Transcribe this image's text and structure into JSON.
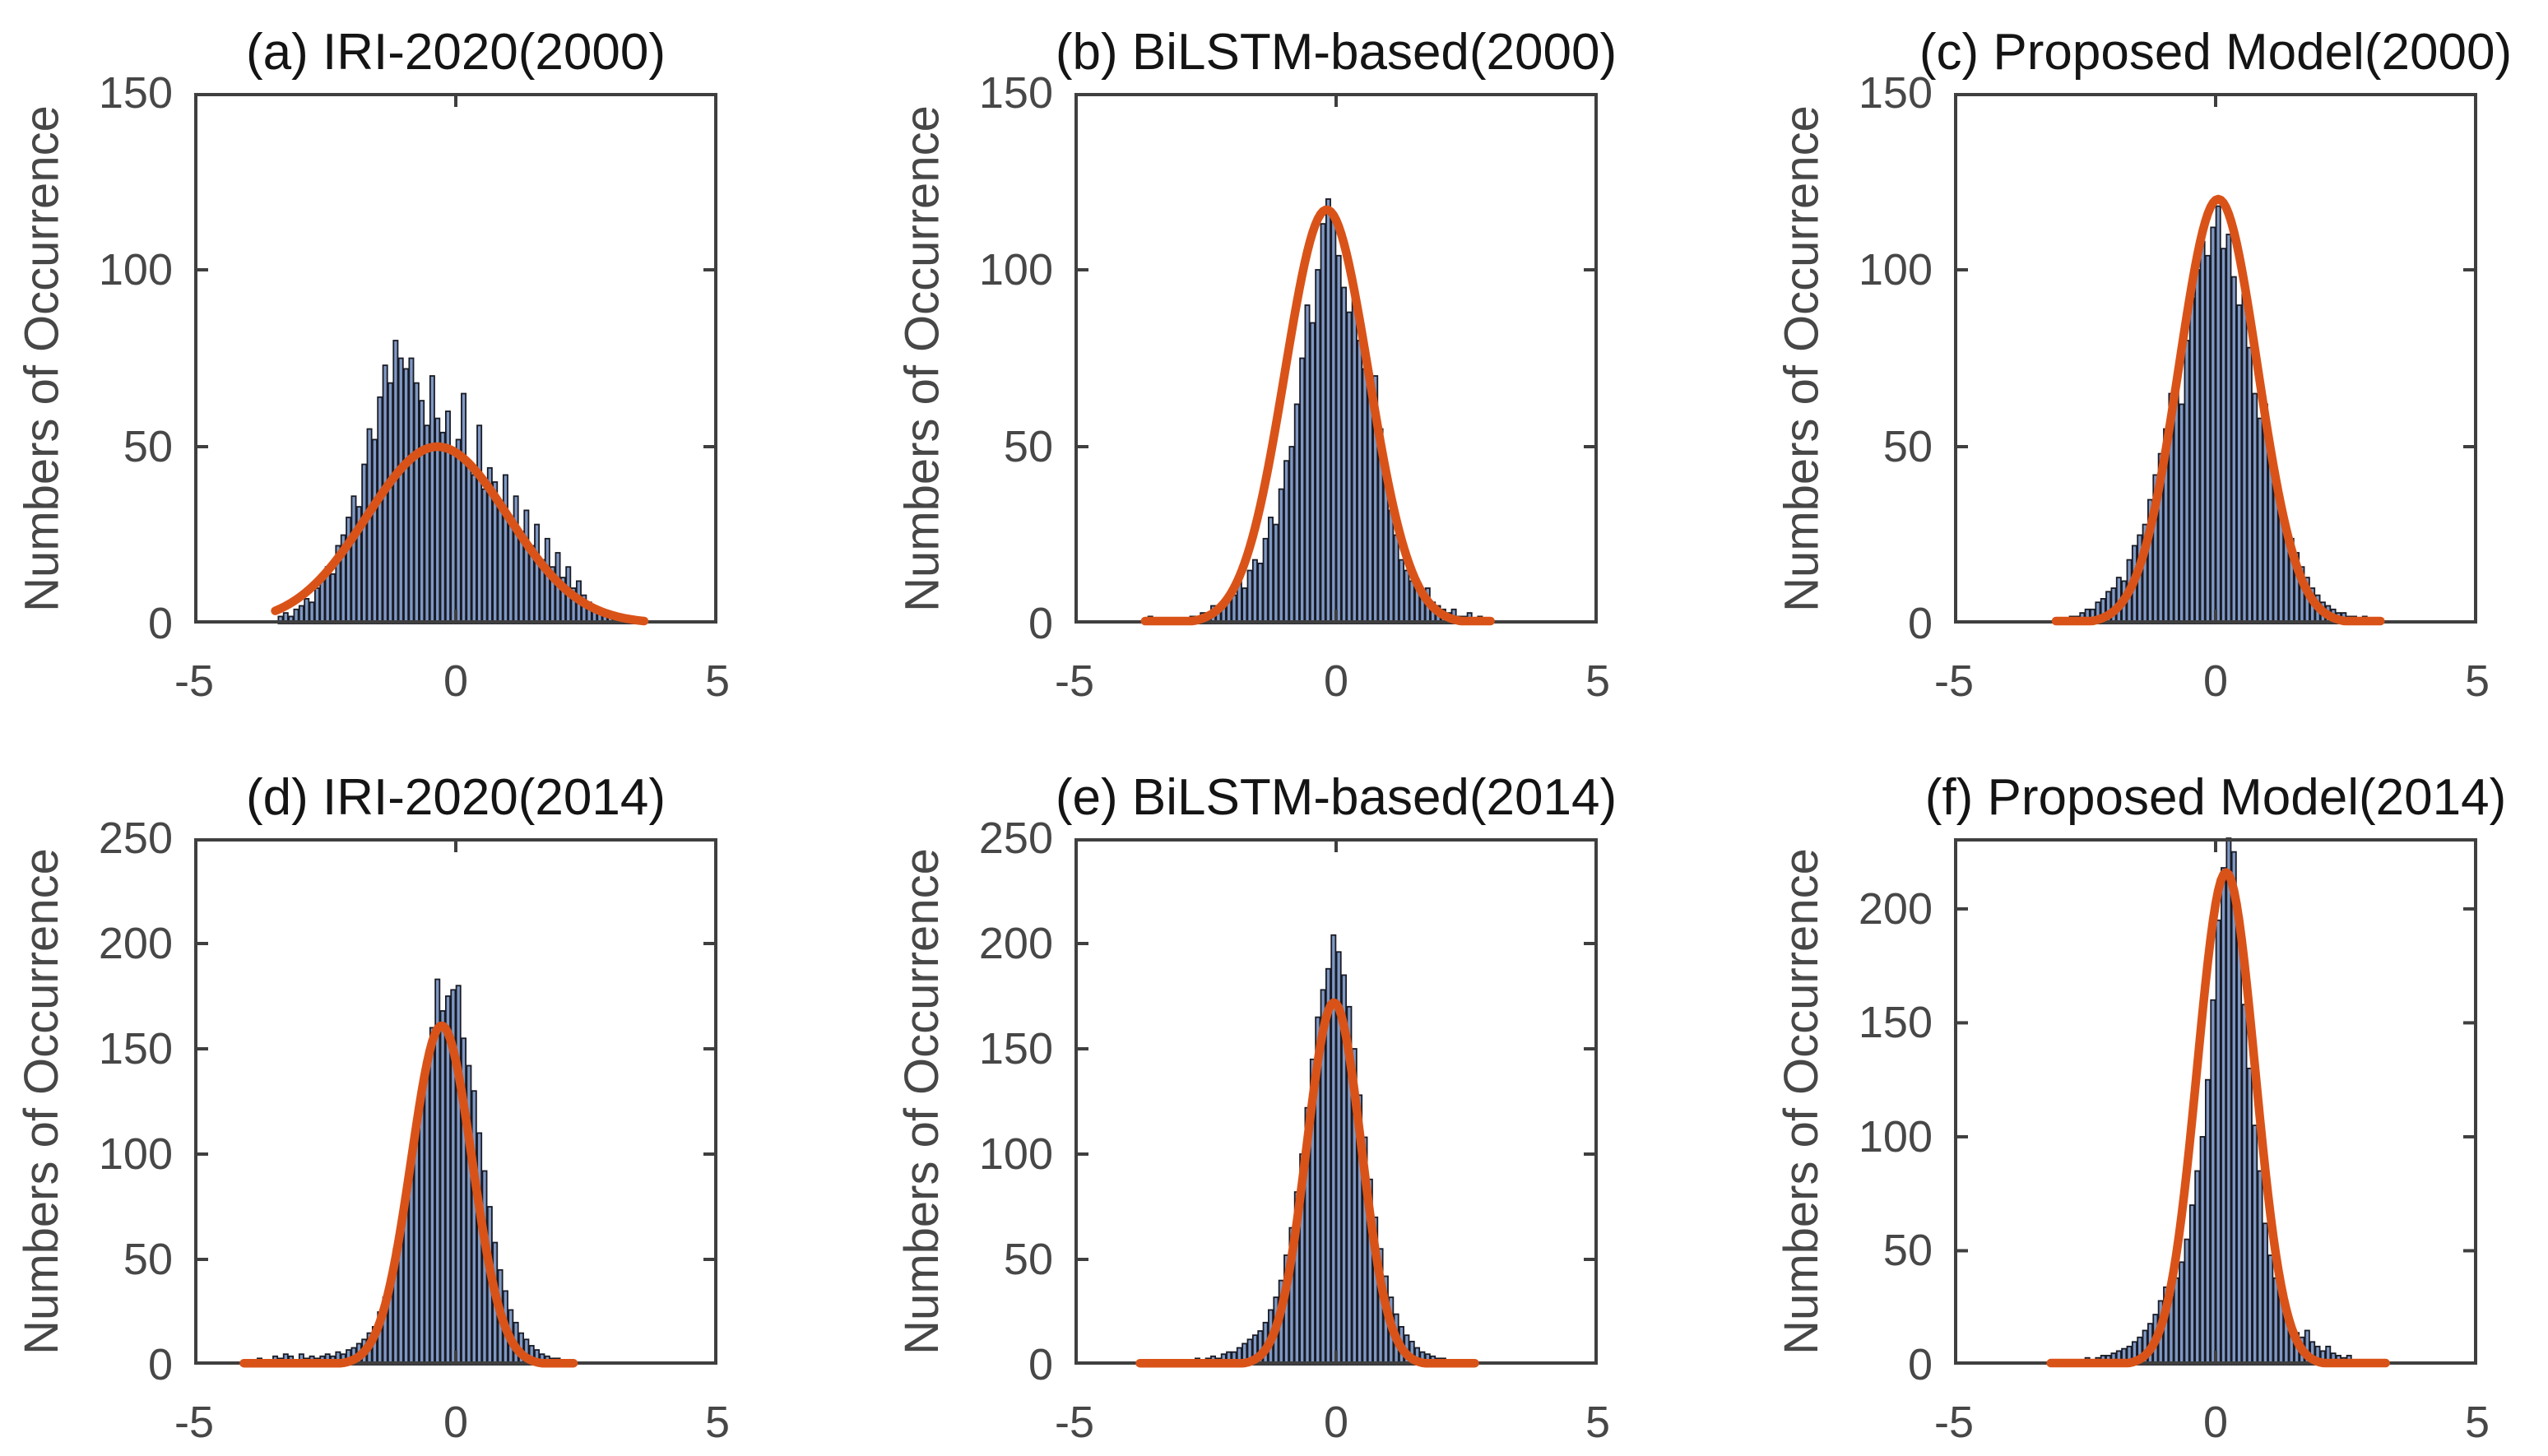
{
  "styles": {
    "background": "#ffffff",
    "bar_face": "#7e98c4",
    "bar_edge": "#191b24",
    "curve_color": "#d95319",
    "axis_color": "#3f3f3f",
    "tick_label_color": "#474747",
    "title_color": "#141414"
  },
  "chart_data": [
    {
      "id": "a",
      "type": "histogram+normal-fit",
      "title": "(a) IRI-2020(2000)",
      "ylabel": "Numbers of Occurrence",
      "xlim": [
        -5,
        5
      ],
      "ylim": [
        0,
        150
      ],
      "xticks": [
        -5,
        0,
        5
      ],
      "yticks": [
        0,
        50,
        100,
        150
      ],
      "bin_width": 0.1,
      "bin_start": -3.4,
      "counts": [
        2,
        3,
        2,
        4,
        5,
        7,
        6,
        10,
        12,
        16,
        14,
        22,
        25,
        30,
        36,
        33,
        45,
        55,
        52,
        64,
        73,
        68,
        80,
        75,
        72,
        75,
        68,
        63,
        56,
        70,
        58,
        54,
        60,
        48,
        52,
        65,
        46,
        42,
        56,
        38,
        44,
        40,
        34,
        42,
        30,
        36,
        26,
        32,
        22,
        28,
        18,
        24,
        16,
        20,
        13,
        16,
        10,
        12,
        8,
        6,
        5,
        4,
        3,
        3,
        2,
        2,
        1,
        2,
        1,
        1
      ],
      "fit": {
        "amplitude": 50,
        "mean": -0.35,
        "sigma": 1.35,
        "x_min": -3.45,
        "x_max": 3.6
      }
    },
    {
      "id": "b",
      "type": "histogram+normal-fit",
      "title": "(b) BiLSTM-based(2000)",
      "ylabel": "Numbers of Occurrence",
      "xlim": [
        -5,
        5
      ],
      "ylim": [
        0,
        150
      ],
      "xticks": [
        -5,
        0,
        5
      ],
      "yticks": [
        0,
        50,
        100,
        150
      ],
      "bin_width": 0.1,
      "bin_start": -3.6,
      "counts": [
        2,
        0,
        0,
        0,
        0,
        0,
        1,
        0,
        2,
        2,
        3,
        3,
        5,
        4,
        6,
        8,
        8,
        12,
        10,
        15,
        18,
        17,
        24,
        30,
        28,
        38,
        46,
        50,
        62,
        75,
        90,
        85,
        100,
        113,
        120,
        116,
        104,
        95,
        88,
        95,
        80,
        72,
        68,
        70,
        55,
        40,
        32,
        25,
        18,
        15,
        12,
        10,
        8,
        10,
        6,
        5,
        4,
        3,
        4,
        2,
        2,
        3,
        1,
        2,
        1,
        1
      ],
      "fit": {
        "amplitude": 117,
        "mean": -0.18,
        "sigma": 0.8,
        "x_min": -3.65,
        "x_max": 2.95
      }
    },
    {
      "id": "c",
      "type": "histogram+normal-fit",
      "title": "(c) Proposed Model(2000)",
      "ylabel": "Numbers of Occurrence",
      "xlim": [
        -5,
        5
      ],
      "ylim": [
        0,
        150
      ],
      "xticks": [
        -5,
        0,
        5
      ],
      "yticks": [
        0,
        50,
        100,
        150
      ],
      "bin_width": 0.1,
      "bin_start": -3.0,
      "counts": [
        1,
        1,
        2,
        2,
        3,
        4,
        4,
        6,
        7,
        9,
        10,
        13,
        12,
        18,
        22,
        25,
        28,
        35,
        42,
        48,
        55,
        65,
        70,
        62,
        80,
        92,
        100,
        108,
        104,
        112,
        118,
        106,
        110,
        98,
        90,
        95,
        78,
        65,
        58,
        62,
        48,
        40,
        34,
        28,
        24,
        20,
        16,
        13,
        10,
        8,
        6,
        5,
        4,
        3,
        3,
        2,
        2,
        1,
        2,
        1,
        1,
        1
      ],
      "fit": {
        "amplitude": 120,
        "mean": 0.05,
        "sigma": 0.75,
        "x_min": -3.05,
        "x_max": 3.15
      }
    },
    {
      "id": "d",
      "type": "histogram+normal-fit",
      "title": "(d) IRI-2020(2014)",
      "ylabel": "Numbers of Occurrence",
      "xlim": [
        -5,
        5
      ],
      "ylim": [
        0,
        250
      ],
      "xticks": [
        -5,
        0,
        5
      ],
      "yticks": [
        0,
        50,
        100,
        150,
        200,
        250
      ],
      "bin_width": 0.1,
      "bin_start": -4.0,
      "counts": [
        2,
        0,
        3,
        2,
        0,
        4,
        3,
        5,
        4,
        2,
        5,
        3,
        4,
        3,
        4,
        5,
        4,
        6,
        5,
        7,
        8,
        10,
        12,
        15,
        18,
        25,
        32,
        40,
        55,
        68,
        80,
        95,
        112,
        128,
        140,
        160,
        183,
        168,
        175,
        178,
        180,
        155,
        142,
        130,
        110,
        92,
        75,
        58,
        45,
        35,
        26,
        20,
        15,
        12,
        9,
        7,
        5,
        4,
        3,
        3,
        2,
        2,
        1
      ],
      "fit": {
        "amplitude": 161,
        "mean": -0.27,
        "sigma": 0.58,
        "x_min": -4.05,
        "x_max": 2.25
      }
    },
    {
      "id": "e",
      "type": "histogram+normal-fit",
      "title": "(e) BiLSTM-based(2014)",
      "ylabel": "Numbers of Occurrence",
      "xlim": [
        -5,
        5
      ],
      "ylim": [
        0,
        250
      ],
      "xticks": [
        -5,
        0,
        5
      ],
      "yticks": [
        0,
        50,
        100,
        150,
        200,
        250
      ],
      "bin_width": 0.1,
      "bin_start": -3.7,
      "counts": [
        1,
        0,
        2,
        0,
        1,
        2,
        1,
        2,
        1,
        2,
        3,
        2,
        3,
        4,
        3,
        5,
        6,
        6,
        8,
        10,
        12,
        14,
        16,
        20,
        26,
        32,
        40,
        52,
        65,
        82,
        100,
        122,
        145,
        165,
        178,
        188,
        204,
        196,
        185,
        170,
        150,
        128,
        108,
        88,
        70,
        55,
        42,
        32,
        24,
        18,
        14,
        11,
        8,
        6,
        5,
        4,
        3,
        3,
        2,
        2,
        1,
        2,
        1,
        1
      ],
      "fit": {
        "amplitude": 172,
        "mean": -0.04,
        "sigma": 0.52,
        "x_min": -3.75,
        "x_max": 2.65
      }
    },
    {
      "id": "f",
      "type": "histogram+normal-fit",
      "title": "(f) Proposed Model(2014)",
      "ylabel": "Numbers of Occurrence",
      "xlim": [
        -5,
        5
      ],
      "ylim": [
        0,
        231
      ],
      "xticks": [
        -5,
        0,
        5
      ],
      "yticks": [
        0,
        50,
        100,
        150,
        200
      ],
      "bin_width": 0.1,
      "bin_start": -3.1,
      "counts": [
        2,
        1,
        0,
        2,
        1,
        2,
        3,
        2,
        3,
        4,
        4,
        5,
        6,
        7,
        8,
        10,
        12,
        15,
        18,
        22,
        28,
        34,
        30,
        38,
        45,
        55,
        70,
        85,
        100,
        125,
        160,
        195,
        218,
        231,
        225,
        192,
        158,
        130,
        105,
        85,
        62,
        48,
        38,
        30,
        24,
        18,
        14,
        12,
        15,
        10,
        8,
        6,
        8,
        5,
        4,
        3,
        4,
        2,
        2,
        1,
        2,
        1,
        1,
        1
      ],
      "fit": {
        "amplitude": 216,
        "mean": 0.2,
        "sigma": 0.55,
        "x_min": -3.15,
        "x_max": 3.25
      }
    }
  ]
}
